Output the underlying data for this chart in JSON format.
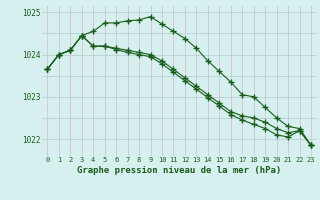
{
  "title": "Graphe pression niveau de la mer (hPa)",
  "background_color": "#d6f0f0",
  "grid_color_major": "#b8d8d8",
  "grid_color_minor": "#c8e8e8",
  "line_color": "#1a5c1a",
  "hours": [
    0,
    1,
    2,
    3,
    4,
    5,
    6,
    7,
    8,
    9,
    10,
    11,
    12,
    13,
    14,
    15,
    16,
    17,
    18,
    19,
    20,
    21,
    22,
    23
  ],
  "line1": [
    1023.65,
    1024.0,
    1024.1,
    1024.45,
    1024.55,
    1024.75,
    1024.75,
    1024.8,
    1024.82,
    1024.9,
    1024.72,
    1024.55,
    1024.38,
    1024.15,
    1023.85,
    1023.6,
    1023.35,
    1023.05,
    1023.0,
    1022.75,
    1022.5,
    1022.3,
    1022.25,
    1021.85
  ],
  "line2": [
    1023.65,
    1024.0,
    1024.1,
    1024.45,
    1024.2,
    1024.2,
    1024.15,
    1024.1,
    1024.05,
    1024.0,
    1023.85,
    1023.65,
    1023.45,
    1023.25,
    1023.05,
    1022.85,
    1022.65,
    1022.55,
    1022.5,
    1022.4,
    1022.25,
    1022.15,
    1022.2,
    1021.85
  ],
  "line3": [
    1023.65,
    1024.0,
    1024.1,
    1024.45,
    1024.2,
    1024.2,
    1024.12,
    1024.05,
    1024.0,
    1023.95,
    1023.78,
    1023.58,
    1023.38,
    1023.18,
    1022.98,
    1022.78,
    1022.58,
    1022.45,
    1022.35,
    1022.25,
    1022.1,
    1022.05,
    1022.2,
    1021.85
  ],
  "ylim_min": 1021.6,
  "ylim_max": 1025.15,
  "ytick_positions": [
    1022,
    1023,
    1024,
    1025
  ],
  "ytick_labels": [
    "1022",
    "1023",
    "1024",
    "1025"
  ]
}
